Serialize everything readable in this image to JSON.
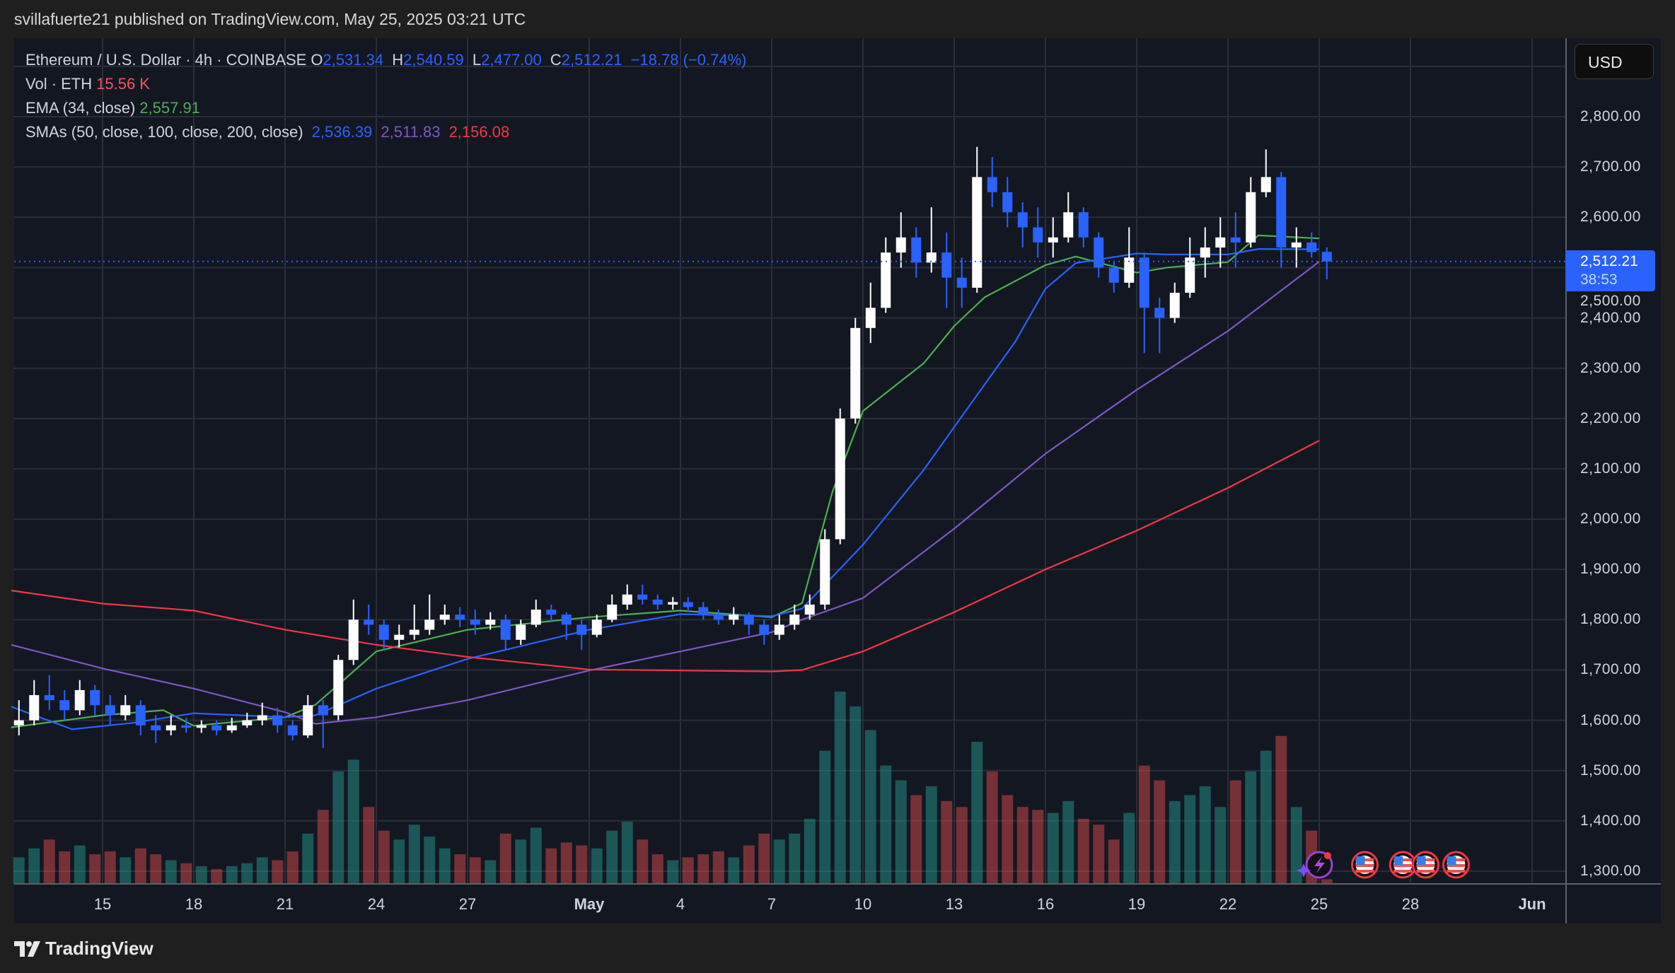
{
  "header": {
    "published": "svillafuerte21 published on TradingView.com, May 25, 2025 03:21 UTC"
  },
  "legend": {
    "symbol": "Ethereum / U.S. Dollar · 4h · COINBASE",
    "o_label": "O",
    "o": "2,531.34",
    "h_label": "H",
    "h": "2,540.59",
    "l_label": "L",
    "l": "2,477.00",
    "c_label": "C",
    "c": "2,512.21",
    "change": "−18.78 (−0.74%)",
    "vol_label": "Vol · ETH",
    "vol": "15.56 K",
    "ema_label": "EMA (34, close)",
    "ema": "2,557.91",
    "sma_label": "SMAs (50, close, 100, close, 200, close)",
    "sma50": "2,536.39",
    "sma100": "2,511.83",
    "sma200": "2,156.08"
  },
  "price_scale": {
    "currency": "USD",
    "last_price": "2,512.21",
    "countdown": "38:53"
  },
  "footer": {
    "brand": "TradingView"
  },
  "chart_data": {
    "type": "candlestick",
    "ylim": [
      1280,
      2900
    ],
    "y_ticks": [
      "2,800.00",
      "2,700.00",
      "2,600.00",
      "2,500.00",
      "2,400.00",
      "2,300.00",
      "2,200.00",
      "2,100.00",
      "2,000.00",
      "1,900.00",
      "1,800.00",
      "1,700.00",
      "1,600.00",
      "1,500.00",
      "1,400.00",
      "1,300.00"
    ],
    "y_tick_values": [
      2800,
      2700,
      2600,
      2500,
      2400,
      2300,
      2200,
      2100,
      2000,
      1900,
      1800,
      1700,
      1600,
      1500,
      1400,
      1300
    ],
    "x_ticks": [
      {
        "label": "15",
        "date": "2025-04-15"
      },
      {
        "label": "18",
        "date": "2025-04-18"
      },
      {
        "label": "21",
        "date": "2025-04-21"
      },
      {
        "label": "24",
        "date": "2025-04-24"
      },
      {
        "label": "27",
        "date": "2025-04-27"
      },
      {
        "label": "May",
        "date": "2025-05-01",
        "bold": true
      },
      {
        "label": "4",
        "date": "2025-05-04"
      },
      {
        "label": "7",
        "date": "2025-05-07"
      },
      {
        "label": "10",
        "date": "2025-05-10"
      },
      {
        "label": "13",
        "date": "2025-05-13"
      },
      {
        "label": "16",
        "date": "2025-05-16"
      },
      {
        "label": "19",
        "date": "2025-05-19"
      },
      {
        "label": "22",
        "date": "2025-05-22"
      },
      {
        "label": "25",
        "date": "2025-05-25"
      },
      {
        "label": "28",
        "date": "2025-05-28"
      },
      {
        "label": "Jun",
        "date": "2025-06-01",
        "bold": true
      }
    ],
    "x_range": [
      "2025-04-12",
      "2025-06-03"
    ],
    "grid": true,
    "colors": {
      "up": "#ffffff",
      "down": "#2962ff",
      "vol_up": "#26a69a",
      "vol_down": "#ef5350",
      "ema34": "#4caf50",
      "sma50": "#2962ff",
      "sma100": "#7e57c2",
      "sma200": "#f23645",
      "background": "#131722",
      "grid": "#2a2e39"
    },
    "volume_unit": "K ETH",
    "candles": [
      [
        "2025-04-12 00:00",
        1590,
        1640,
        1570,
        1600,
        90
      ],
      [
        "2025-04-12 12:00",
        1600,
        1680,
        1590,
        1650,
        120
      ],
      [
        "2025-04-13 00:00",
        1650,
        1690,
        1620,
        1640,
        150
      ],
      [
        "2025-04-13 12:00",
        1640,
        1660,
        1600,
        1620,
        110
      ],
      [
        "2025-04-14 00:00",
        1620,
        1680,
        1610,
        1660,
        130
      ],
      [
        "2025-04-14 12:00",
        1660,
        1670,
        1610,
        1630,
        100
      ],
      [
        "2025-04-15 00:00",
        1630,
        1650,
        1590,
        1610,
        110
      ],
      [
        "2025-04-15 12:00",
        1610,
        1650,
        1600,
        1630,
        90
      ],
      [
        "2025-04-16 00:00",
        1630,
        1640,
        1570,
        1590,
        120
      ],
      [
        "2025-04-16 12:00",
        1590,
        1610,
        1555,
        1580,
        100
      ],
      [
        "2025-04-17 00:00",
        1580,
        1610,
        1570,
        1590,
        80
      ],
      [
        "2025-04-17 12:00",
        1590,
        1605,
        1575,
        1585,
        70
      ],
      [
        "2025-04-18 00:00",
        1585,
        1600,
        1575,
        1590,
        60
      ],
      [
        "2025-04-18 12:00",
        1590,
        1600,
        1570,
        1580,
        50
      ],
      [
        "2025-04-19 00:00",
        1580,
        1605,
        1575,
        1590,
        60
      ],
      [
        "2025-04-19 12:00",
        1590,
        1615,
        1585,
        1600,
        70
      ],
      [
        "2025-04-20 00:00",
        1600,
        1635,
        1590,
        1610,
        90
      ],
      [
        "2025-04-20 12:00",
        1610,
        1625,
        1575,
        1590,
        80
      ],
      [
        "2025-04-21 00:00",
        1590,
        1600,
        1560,
        1570,
        110
      ],
      [
        "2025-04-21 12:00",
        1570,
        1650,
        1565,
        1630,
        170
      ],
      [
        "2025-04-22 00:00",
        1630,
        1640,
        1545,
        1610,
        250
      ],
      [
        "2025-04-22 12:00",
        1610,
        1730,
        1600,
        1720,
        380
      ],
      [
        "2025-04-23 00:00",
        1720,
        1840,
        1710,
        1800,
        420
      ],
      [
        "2025-04-23 12:00",
        1800,
        1830,
        1770,
        1790,
        260
      ],
      [
        "2025-04-24 00:00",
        1790,
        1800,
        1740,
        1760,
        180
      ],
      [
        "2025-04-24 12:00",
        1760,
        1790,
        1745,
        1770,
        150
      ],
      [
        "2025-04-25 00:00",
        1770,
        1830,
        1760,
        1780,
        200
      ],
      [
        "2025-04-25 12:00",
        1780,
        1850,
        1770,
        1800,
        160
      ],
      [
        "2025-04-26 00:00",
        1800,
        1830,
        1790,
        1810,
        120
      ],
      [
        "2025-04-26 12:00",
        1810,
        1825,
        1785,
        1800,
        100
      ],
      [
        "2025-04-27 00:00",
        1800,
        1820,
        1770,
        1790,
        90
      ],
      [
        "2025-04-27 12:00",
        1790,
        1815,
        1780,
        1800,
        80
      ],
      [
        "2025-04-28 00:00",
        1800,
        1810,
        1740,
        1760,
        170
      ],
      [
        "2025-04-28 12:00",
        1760,
        1800,
        1750,
        1790,
        150
      ],
      [
        "2025-04-29 00:00",
        1790,
        1840,
        1785,
        1820,
        190
      ],
      [
        "2025-04-29 12:00",
        1820,
        1830,
        1795,
        1810,
        120
      ],
      [
        "2025-04-30 00:00",
        1810,
        1815,
        1760,
        1790,
        140
      ],
      [
        "2025-04-30 12:00",
        1790,
        1800,
        1740,
        1770,
        130
      ],
      [
        "2025-05-01 00:00",
        1770,
        1810,
        1765,
        1800,
        120
      ],
      [
        "2025-05-01 12:00",
        1800,
        1850,
        1795,
        1830,
        180
      ],
      [
        "2025-05-02 00:00",
        1830,
        1870,
        1820,
        1850,
        210
      ],
      [
        "2025-05-02 12:00",
        1850,
        1870,
        1830,
        1840,
        150
      ],
      [
        "2025-05-03 00:00",
        1840,
        1850,
        1820,
        1830,
        100
      ],
      [
        "2025-05-03 12:00",
        1830,
        1845,
        1820,
        1835,
        80
      ],
      [
        "2025-05-04 00:00",
        1835,
        1845,
        1815,
        1825,
        90
      ],
      [
        "2025-05-04 12:00",
        1825,
        1835,
        1800,
        1810,
        100
      ],
      [
        "2025-05-05 00:00",
        1810,
        1820,
        1790,
        1800,
        110
      ],
      [
        "2025-05-05 12:00",
        1800,
        1825,
        1790,
        1810,
        90
      ],
      [
        "2025-05-06 00:00",
        1810,
        1815,
        1770,
        1790,
        130
      ],
      [
        "2025-05-06 12:00",
        1790,
        1800,
        1750,
        1770,
        170
      ],
      [
        "2025-05-07 00:00",
        1770,
        1810,
        1760,
        1790,
        150
      ],
      [
        "2025-05-07 12:00",
        1790,
        1830,
        1780,
        1810,
        170
      ],
      [
        "2025-05-08 00:00",
        1810,
        1850,
        1800,
        1830,
        220
      ],
      [
        "2025-05-08 12:00",
        1830,
        1980,
        1820,
        1960,
        450
      ],
      [
        "2025-05-09 00:00",
        1960,
        2220,
        1950,
        2200,
        650
      ],
      [
        "2025-05-09 12:00",
        2200,
        2400,
        2190,
        2380,
        600
      ],
      [
        "2025-05-10 00:00",
        2380,
        2470,
        2350,
        2420,
        520
      ],
      [
        "2025-05-10 12:00",
        2420,
        2560,
        2410,
        2530,
        400
      ],
      [
        "2025-05-11 00:00",
        2530,
        2610,
        2500,
        2560,
        350
      ],
      [
        "2025-05-11 12:00",
        2560,
        2580,
        2480,
        2510,
        300
      ],
      [
        "2025-05-12 00:00",
        2510,
        2620,
        2490,
        2530,
        330
      ],
      [
        "2025-05-12 12:00",
        2530,
        2570,
        2420,
        2480,
        280
      ],
      [
        "2025-05-13 00:00",
        2480,
        2520,
        2420,
        2460,
        260
      ],
      [
        "2025-05-13 12:00",
        2460,
        2740,
        2450,
        2680,
        480
      ],
      [
        "2025-05-14 00:00",
        2680,
        2720,
        2620,
        2650,
        380
      ],
      [
        "2025-05-14 12:00",
        2650,
        2680,
        2580,
        2610,
        300
      ],
      [
        "2025-05-15 00:00",
        2610,
        2630,
        2540,
        2580,
        260
      ],
      [
        "2025-05-15 12:00",
        2580,
        2620,
        2520,
        2550,
        250
      ],
      [
        "2025-05-16 00:00",
        2550,
        2600,
        2520,
        2560,
        240
      ],
      [
        "2025-05-16 12:00",
        2560,
        2650,
        2550,
        2610,
        280
      ],
      [
        "2025-05-17 00:00",
        2610,
        2620,
        2540,
        2560,
        220
      ],
      [
        "2025-05-17 12:00",
        2560,
        2570,
        2480,
        2500,
        200
      ],
      [
        "2025-05-18 00:00",
        2500,
        2510,
        2450,
        2470,
        150
      ],
      [
        "2025-05-18 12:00",
        2470,
        2580,
        2460,
        2520,
        240
      ],
      [
        "2025-05-19 00:00",
        2520,
        2530,
        2330,
        2420,
        400
      ],
      [
        "2025-05-19 12:00",
        2420,
        2440,
        2330,
        2400,
        350
      ],
      [
        "2025-05-20 00:00",
        2400,
        2470,
        2390,
        2450,
        280
      ],
      [
        "2025-05-20 12:00",
        2450,
        2560,
        2440,
        2520,
        300
      ],
      [
        "2025-05-21 00:00",
        2520,
        2580,
        2480,
        2540,
        330
      ],
      [
        "2025-05-21 12:00",
        2540,
        2600,
        2500,
        2560,
        260
      ],
      [
        "2025-05-22 00:00",
        2560,
        2610,
        2500,
        2550,
        350
      ],
      [
        "2025-05-22 12:00",
        2550,
        2680,
        2540,
        2650,
        380
      ],
      [
        "2025-05-23 00:00",
        2650,
        2735,
        2640,
        2680,
        450
      ],
      [
        "2025-05-23 12:00",
        2680,
        2690,
        2500,
        2540,
        500
      ],
      [
        "2025-05-24 00:00",
        2540,
        2580,
        2500,
        2550,
        260
      ],
      [
        "2025-05-24 12:00",
        2550,
        2570,
        2520,
        2531,
        180
      ],
      [
        "2025-05-25 00:00",
        2531.34,
        2540.59,
        2477.0,
        2512.21,
        15.56
      ]
    ],
    "indicators": [
      {
        "name": "EMA 34",
        "color": "#4caf50",
        "points": [
          [
            "2025-04-12",
            1586
          ],
          [
            "2025-04-15",
            1610
          ],
          [
            "2025-04-17",
            1620
          ],
          [
            "2025-04-18",
            1589
          ],
          [
            "2025-04-21",
            1606
          ],
          [
            "2025-04-22",
            1631
          ],
          [
            "2025-04-24",
            1737
          ],
          [
            "2025-04-27",
            1780
          ],
          [
            "2025-05-01",
            1805
          ],
          [
            "2025-05-04",
            1818
          ],
          [
            "2025-05-07",
            1805
          ],
          [
            "2025-05-08",
            1833
          ],
          [
            "2025-05-09",
            2055
          ],
          [
            "2025-05-10",
            2215
          ],
          [
            "2025-05-12",
            2310
          ],
          [
            "2025-05-13",
            2384
          ],
          [
            "2025-05-14",
            2441
          ],
          [
            "2025-05-16",
            2505
          ],
          [
            "2025-05-17",
            2522
          ],
          [
            "2025-05-19",
            2490
          ],
          [
            "2025-05-20",
            2500
          ],
          [
            "2025-05-22",
            2511
          ],
          [
            "2025-05-23",
            2564
          ],
          [
            "2025-05-25",
            2557.91
          ]
        ]
      },
      {
        "name": "SMA 50",
        "color": "#2962ff",
        "points": [
          [
            "2025-04-12",
            1627
          ],
          [
            "2025-04-14",
            1582
          ],
          [
            "2025-04-16",
            1595
          ],
          [
            "2025-04-18",
            1614
          ],
          [
            "2025-04-21",
            1606
          ],
          [
            "2025-04-22",
            1610
          ],
          [
            "2025-04-24",
            1663
          ],
          [
            "2025-04-27",
            1722
          ],
          [
            "2025-05-01",
            1780
          ],
          [
            "2025-05-04",
            1811
          ],
          [
            "2025-05-07",
            1807
          ],
          [
            "2025-05-08",
            1822
          ],
          [
            "2025-05-10",
            1949
          ],
          [
            "2025-05-12",
            2098
          ],
          [
            "2025-05-13",
            2183
          ],
          [
            "2025-05-15",
            2352
          ],
          [
            "2025-05-16",
            2458
          ],
          [
            "2025-05-17",
            2509
          ],
          [
            "2025-05-19",
            2528
          ],
          [
            "2025-05-20",
            2526
          ],
          [
            "2025-05-22",
            2526
          ],
          [
            "2025-05-23",
            2537
          ],
          [
            "2025-05-25",
            2536.39
          ]
        ]
      },
      {
        "name": "SMA 100",
        "color": "#7e57c2",
        "points": [
          [
            "2025-04-12",
            1750
          ],
          [
            "2025-04-15",
            1703
          ],
          [
            "2025-04-18",
            1663
          ],
          [
            "2025-04-21",
            1616
          ],
          [
            "2025-04-22",
            1593
          ],
          [
            "2025-04-24",
            1606
          ],
          [
            "2025-04-27",
            1640
          ],
          [
            "2025-05-01",
            1699
          ],
          [
            "2025-05-04",
            1737
          ],
          [
            "2025-05-07",
            1775
          ],
          [
            "2025-05-08",
            1800
          ],
          [
            "2025-05-10",
            1843
          ],
          [
            "2025-05-13",
            1981
          ],
          [
            "2025-05-16",
            2130
          ],
          [
            "2025-05-19",
            2257
          ],
          [
            "2025-05-22",
            2374
          ],
          [
            "2025-05-25",
            2511.83
          ]
        ]
      },
      {
        "name": "SMA 200",
        "color": "#f23645",
        "points": [
          [
            "2025-04-12",
            1858
          ],
          [
            "2025-04-15",
            1832
          ],
          [
            "2025-04-18",
            1818
          ],
          [
            "2025-04-21",
            1780
          ],
          [
            "2025-04-24",
            1750
          ],
          [
            "2025-04-27",
            1726
          ],
          [
            "2025-05-01",
            1701
          ],
          [
            "2025-05-04",
            1699
          ],
          [
            "2025-05-07",
            1697
          ],
          [
            "2025-05-08",
            1700
          ],
          [
            "2025-05-10",
            1737
          ],
          [
            "2025-05-13",
            1815
          ],
          [
            "2025-05-16",
            1900
          ],
          [
            "2025-05-19",
            1977
          ],
          [
            "2025-05-22",
            2062
          ],
          [
            "2025-05-25",
            2156.08
          ]
        ]
      }
    ],
    "last_price": 2512.21,
    "events": [
      {
        "type": "lightning-event",
        "date": "2025-05-25"
      },
      {
        "type": "us-flag-event",
        "date": "2025-05-26 12:00"
      },
      {
        "type": "us-flag-event",
        "date": "2025-05-27 18:00"
      },
      {
        "type": "us-flag-event",
        "date": "2025-05-28 12:00"
      },
      {
        "type": "us-flag-event",
        "date": "2025-05-29 12:00"
      }
    ]
  }
}
